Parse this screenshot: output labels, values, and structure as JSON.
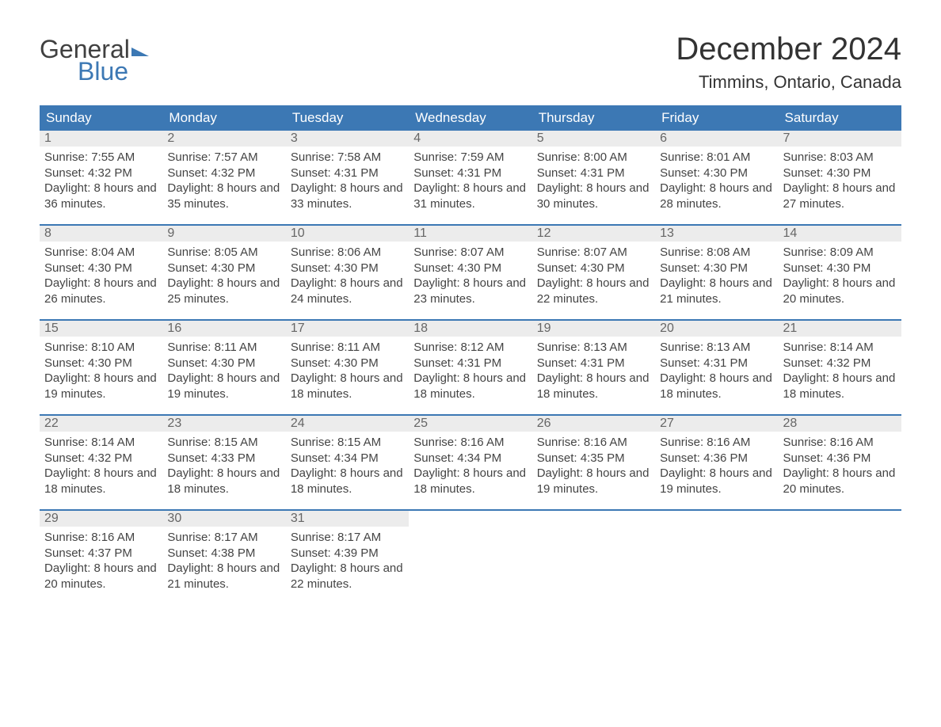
{
  "logo": {
    "top": "General",
    "bottom": "Blue"
  },
  "title": "December 2024",
  "location": "Timmins, Ontario, Canada",
  "colors": {
    "header_bg": "#3c78b4",
    "header_text": "#ffffff",
    "daynum_bg": "#ececec",
    "daynum_text": "#666666",
    "body_text": "#444444",
    "week_border": "#3c78b4",
    "page_bg": "#ffffff"
  },
  "dayNames": [
    "Sunday",
    "Monday",
    "Tuesday",
    "Wednesday",
    "Thursday",
    "Friday",
    "Saturday"
  ],
  "weeks": [
    [
      {
        "num": "1",
        "sunrise": "7:55 AM",
        "sunset": "4:32 PM",
        "daylight": "8 hours and 36 minutes."
      },
      {
        "num": "2",
        "sunrise": "7:57 AM",
        "sunset": "4:32 PM",
        "daylight": "8 hours and 35 minutes."
      },
      {
        "num": "3",
        "sunrise": "7:58 AM",
        "sunset": "4:31 PM",
        "daylight": "8 hours and 33 minutes."
      },
      {
        "num": "4",
        "sunrise": "7:59 AM",
        "sunset": "4:31 PM",
        "daylight": "8 hours and 31 minutes."
      },
      {
        "num": "5",
        "sunrise": "8:00 AM",
        "sunset": "4:31 PM",
        "daylight": "8 hours and 30 minutes."
      },
      {
        "num": "6",
        "sunrise": "8:01 AM",
        "sunset": "4:30 PM",
        "daylight": "8 hours and 28 minutes."
      },
      {
        "num": "7",
        "sunrise": "8:03 AM",
        "sunset": "4:30 PM",
        "daylight": "8 hours and 27 minutes."
      }
    ],
    [
      {
        "num": "8",
        "sunrise": "8:04 AM",
        "sunset": "4:30 PM",
        "daylight": "8 hours and 26 minutes."
      },
      {
        "num": "9",
        "sunrise": "8:05 AM",
        "sunset": "4:30 PM",
        "daylight": "8 hours and 25 minutes."
      },
      {
        "num": "10",
        "sunrise": "8:06 AM",
        "sunset": "4:30 PM",
        "daylight": "8 hours and 24 minutes."
      },
      {
        "num": "11",
        "sunrise": "8:07 AM",
        "sunset": "4:30 PM",
        "daylight": "8 hours and 23 minutes."
      },
      {
        "num": "12",
        "sunrise": "8:07 AM",
        "sunset": "4:30 PM",
        "daylight": "8 hours and 22 minutes."
      },
      {
        "num": "13",
        "sunrise": "8:08 AM",
        "sunset": "4:30 PM",
        "daylight": "8 hours and 21 minutes."
      },
      {
        "num": "14",
        "sunrise": "8:09 AM",
        "sunset": "4:30 PM",
        "daylight": "8 hours and 20 minutes."
      }
    ],
    [
      {
        "num": "15",
        "sunrise": "8:10 AM",
        "sunset": "4:30 PM",
        "daylight": "8 hours and 19 minutes."
      },
      {
        "num": "16",
        "sunrise": "8:11 AM",
        "sunset": "4:30 PM",
        "daylight": "8 hours and 19 minutes."
      },
      {
        "num": "17",
        "sunrise": "8:11 AM",
        "sunset": "4:30 PM",
        "daylight": "8 hours and 18 minutes."
      },
      {
        "num": "18",
        "sunrise": "8:12 AM",
        "sunset": "4:31 PM",
        "daylight": "8 hours and 18 minutes."
      },
      {
        "num": "19",
        "sunrise": "8:13 AM",
        "sunset": "4:31 PM",
        "daylight": "8 hours and 18 minutes."
      },
      {
        "num": "20",
        "sunrise": "8:13 AM",
        "sunset": "4:31 PM",
        "daylight": "8 hours and 18 minutes."
      },
      {
        "num": "21",
        "sunrise": "8:14 AM",
        "sunset": "4:32 PM",
        "daylight": "8 hours and 18 minutes."
      }
    ],
    [
      {
        "num": "22",
        "sunrise": "8:14 AM",
        "sunset": "4:32 PM",
        "daylight": "8 hours and 18 minutes."
      },
      {
        "num": "23",
        "sunrise": "8:15 AM",
        "sunset": "4:33 PM",
        "daylight": "8 hours and 18 minutes."
      },
      {
        "num": "24",
        "sunrise": "8:15 AM",
        "sunset": "4:34 PM",
        "daylight": "8 hours and 18 minutes."
      },
      {
        "num": "25",
        "sunrise": "8:16 AM",
        "sunset": "4:34 PM",
        "daylight": "8 hours and 18 minutes."
      },
      {
        "num": "26",
        "sunrise": "8:16 AM",
        "sunset": "4:35 PM",
        "daylight": "8 hours and 19 minutes."
      },
      {
        "num": "27",
        "sunrise": "8:16 AM",
        "sunset": "4:36 PM",
        "daylight": "8 hours and 19 minutes."
      },
      {
        "num": "28",
        "sunrise": "8:16 AM",
        "sunset": "4:36 PM",
        "daylight": "8 hours and 20 minutes."
      }
    ],
    [
      {
        "num": "29",
        "sunrise": "8:16 AM",
        "sunset": "4:37 PM",
        "daylight": "8 hours and 20 minutes."
      },
      {
        "num": "30",
        "sunrise": "8:17 AM",
        "sunset": "4:38 PM",
        "daylight": "8 hours and 21 minutes."
      },
      {
        "num": "31",
        "sunrise": "8:17 AM",
        "sunset": "4:39 PM",
        "daylight": "8 hours and 22 minutes."
      },
      {
        "empty": true
      },
      {
        "empty": true
      },
      {
        "empty": true
      },
      {
        "empty": true
      }
    ]
  ],
  "labels": {
    "sunrise_prefix": "Sunrise: ",
    "sunset_prefix": "Sunset: ",
    "daylight_prefix": "Daylight: "
  }
}
